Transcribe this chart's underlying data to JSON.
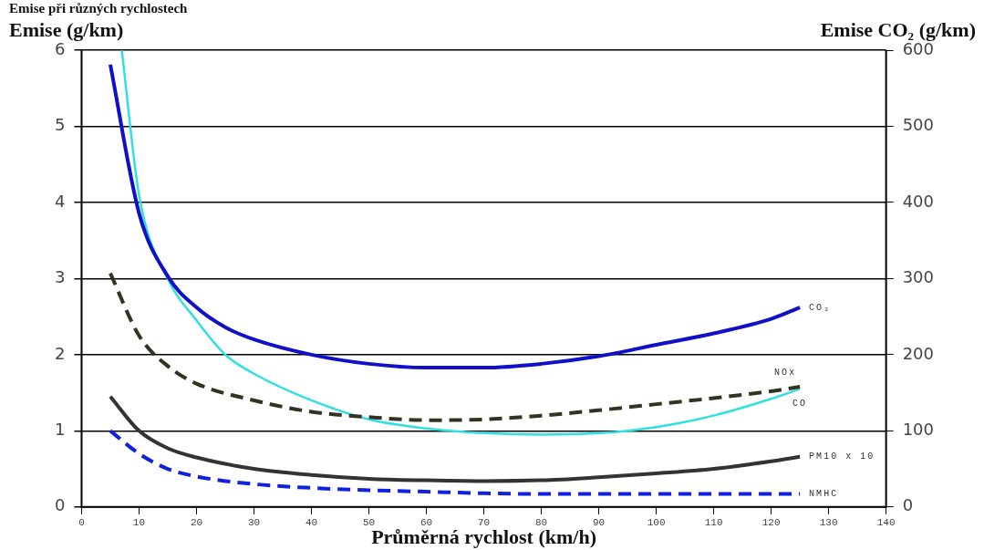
{
  "chart_data": {
    "type": "line",
    "title": "Emise při různých rychlostech",
    "xlabel": "Průměrná rychlost (km/h)",
    "ylabel": "Emise (g/km)",
    "y2label": "Emise CO₂ (g/km)",
    "xlim": [
      0,
      140
    ],
    "xticks": [
      0,
      10,
      20,
      30,
      40,
      50,
      60,
      70,
      80,
      90,
      100,
      110,
      120,
      130,
      140
    ],
    "ylim": [
      0,
      6
    ],
    "yticks": [
      0,
      1,
      2,
      3,
      4,
      5,
      6
    ],
    "y2lim": [
      0,
      600
    ],
    "y2ticks": [
      0,
      100,
      200,
      300,
      400,
      500,
      600
    ],
    "grid": "y",
    "legend": false,
    "marker": "none",
    "series": [
      {
        "name": "CO₂",
        "color": "#1010c8",
        "axis": "y2",
        "line_style": "solid",
        "x": [
          5,
          10,
          15,
          20,
          25,
          30,
          40,
          50,
          60,
          70,
          80,
          90,
          100,
          110,
          120,
          125
        ],
        "values": [
          581,
          386,
          303,
          262,
          236,
          220,
          200,
          188,
          183,
          183,
          188,
          198,
          213,
          228,
          247,
          262
        ]
      },
      {
        "name": "NOx",
        "color": "#333322",
        "axis": "y",
        "line_style": "dashed",
        "x": [
          5,
          10,
          15,
          20,
          30,
          40,
          50,
          60,
          70,
          80,
          90,
          100,
          110,
          120,
          125
        ],
        "values": [
          3.07,
          2.25,
          1.85,
          1.62,
          1.4,
          1.25,
          1.18,
          1.14,
          1.15,
          1.2,
          1.27,
          1.35,
          1.43,
          1.52,
          1.58
        ]
      },
      {
        "name": "CO",
        "color": "#30e0e0",
        "axis": "y",
        "line_style": "solid",
        "x": [
          7,
          10,
          15,
          20,
          25,
          30,
          40,
          50,
          60,
          70,
          80,
          90,
          100,
          110,
          120,
          125
        ],
        "values": [
          6,
          4.1,
          3.0,
          2.45,
          2.0,
          1.75,
          1.4,
          1.15,
          1.03,
          0.97,
          0.95,
          0.97,
          1.05,
          1.2,
          1.42,
          1.55
        ]
      },
      {
        "name": "PM10 x 10",
        "color": "#333333",
        "axis": "y",
        "line_style": "solid",
        "x": [
          5,
          10,
          15,
          20,
          30,
          40,
          50,
          60,
          70,
          80,
          90,
          100,
          110,
          120,
          125
        ],
        "values": [
          1.45,
          1.0,
          0.77,
          0.65,
          0.5,
          0.42,
          0.37,
          0.35,
          0.34,
          0.35,
          0.39,
          0.44,
          0.5,
          0.6,
          0.66
        ]
      },
      {
        "name": "NMHC",
        "color": "#1020e0",
        "axis": "y",
        "line_style": "dashed",
        "x": [
          5,
          10,
          15,
          20,
          30,
          40,
          50,
          60,
          70,
          80,
          100,
          125
        ],
        "values": [
          1.0,
          0.7,
          0.5,
          0.4,
          0.3,
          0.25,
          0.22,
          0.2,
          0.18,
          0.17,
          0.17,
          0.17
        ]
      }
    ]
  }
}
